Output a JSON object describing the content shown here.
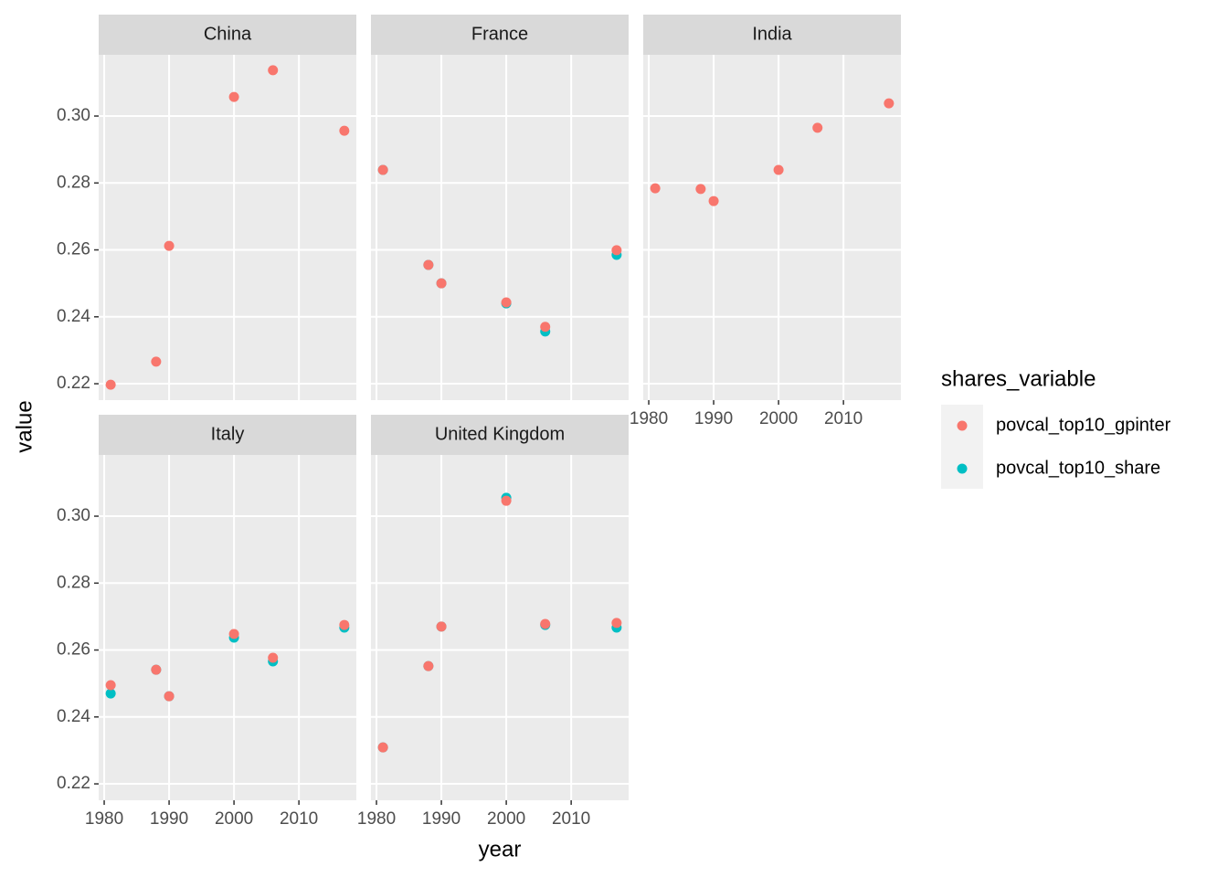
{
  "chart_data": {
    "type": "scatter",
    "xlabel": "year",
    "ylabel": "value",
    "legend_title": "shares_variable",
    "series": [
      {
        "name": "povcal_top10_gpinter",
        "color": "#f8766d"
      },
      {
        "name": "povcal_top10_share",
        "color": "#00bfc4"
      }
    ],
    "xlim": [
      1979.15,
      2018.85
    ],
    "xticks": [
      1980,
      1990,
      2000,
      2010
    ],
    "ylim": [
      0.2151,
      0.3183
    ],
    "yticks": [
      0.22,
      0.24,
      0.26,
      0.28,
      {
        "value": 0.3,
        "label": "0.30"
      }
    ],
    "grid": true,
    "legend": "right",
    "facets": [
      {
        "title": "China",
        "x": [
          1981,
          1988,
          1990,
          2000,
          2006,
          2017
        ],
        "values": [
          [
            0.2197,
            0.2266,
            0.2612,
            0.3057,
            0.3137,
            0.2956
          ],
          [
            null,
            null,
            null,
            null,
            null,
            null
          ]
        ]
      },
      {
        "title": "France",
        "x": [
          1981,
          1988,
          1990,
          2000,
          2006,
          2017
        ],
        "values": [
          [
            0.2839,
            0.2555,
            0.25,
            0.2443,
            0.237,
            0.2599
          ],
          [
            0.2839,
            0.2555,
            0.25,
            0.244,
            0.2356,
            0.2585
          ]
        ]
      },
      {
        "title": "India",
        "x": [
          1981,
          1988,
          1990,
          2000,
          2006,
          2017
        ],
        "values": [
          [
            0.2784,
            0.2782,
            0.2746,
            0.2839,
            0.2965,
            0.3038
          ],
          [
            null,
            null,
            null,
            null,
            null,
            null
          ]
        ]
      },
      {
        "title": "Italy",
        "x": [
          1981,
          1988,
          1990,
          2000,
          2006,
          2017
        ],
        "values": [
          [
            0.2495,
            0.2541,
            0.2462,
            0.2648,
            0.2577,
            0.2675
          ],
          [
            0.247,
            0.2541,
            0.2462,
            0.2637,
            0.2566,
            0.2667
          ]
        ]
      },
      {
        "title": "United Kingdom",
        "x": [
          1981,
          1988,
          1990,
          2000,
          2006,
          2017
        ],
        "values": [
          [
            0.2309,
            0.2552,
            0.267,
            0.3046,
            0.2678,
            0.2681
          ],
          [
            0.2309,
            0.2552,
            0.267,
            0.3055,
            0.2675,
            0.2667
          ]
        ]
      }
    ]
  }
}
